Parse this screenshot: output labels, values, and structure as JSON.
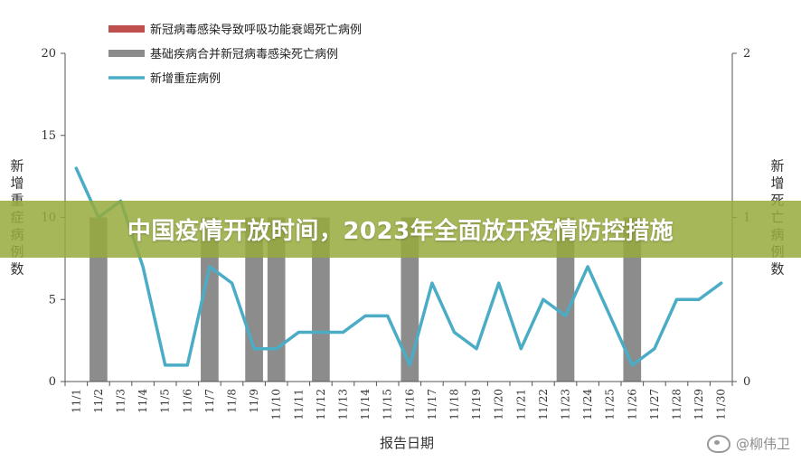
{
  "banner": {
    "title": "中国疫情开放时间，2023年全面放开疫情防控措施"
  },
  "watermark": {
    "text": "@柳伟卫",
    "icon": "weibo-logo-icon"
  },
  "chart_data": {
    "type": "bar+line",
    "xlabel": "报告日期",
    "ylabel_left": "新增重症病例数",
    "ylabel_right": "新增死亡病例数",
    "ylim_left": [
      0,
      20
    ],
    "ylim_right": [
      0,
      2
    ],
    "yticks_left": [
      0,
      5,
      10,
      15,
      20
    ],
    "yticks_right": [
      0,
      1,
      2
    ],
    "grid": false,
    "legend_position": "top-left",
    "categories": [
      "11/1",
      "11/2",
      "11/3",
      "11/4",
      "11/5",
      "11/6",
      "11/7",
      "11/8",
      "11/9",
      "11/10",
      "11/11",
      "11/12",
      "11/13",
      "11/14",
      "11/15",
      "11/16",
      "11/17",
      "11/18",
      "11/19",
      "11/20",
      "11/21",
      "11/22",
      "11/23",
      "11/24",
      "11/25",
      "11/26",
      "11/27",
      "11/28",
      "11/29",
      "11/30"
    ],
    "series": [
      {
        "name": "新冠病毒感染导致呼吸功能衰竭死亡病例",
        "type": "bar",
        "axis": "right",
        "color": "#c0504d",
        "values": [
          0,
          0,
          0,
          0,
          0,
          0,
          0,
          0,
          0,
          0,
          0,
          0,
          0,
          0,
          0,
          0,
          0,
          0,
          0,
          0,
          0,
          0,
          0,
          0,
          0,
          0,
          0,
          0,
          0,
          0
        ]
      },
      {
        "name": "基础疾病合并新冠病毒感染死亡病例",
        "type": "bar",
        "axis": "right",
        "color": "#8c8c8c",
        "values": [
          0,
          1,
          0,
          0,
          0,
          0,
          1,
          0,
          1,
          1,
          0,
          1,
          0,
          0,
          0,
          1,
          0,
          0,
          0,
          0,
          0,
          0,
          1,
          0,
          0,
          1,
          0,
          0,
          0,
          0
        ]
      },
      {
        "name": "新增重症病例",
        "type": "line",
        "axis": "left",
        "color": "#4bacc6",
        "values": [
          13,
          10,
          11,
          7,
          1,
          1,
          7,
          6,
          2,
          2,
          3,
          3,
          3,
          4,
          4,
          1,
          6,
          3,
          2,
          6,
          2,
          5,
          4,
          7,
          4,
          1,
          2,
          5,
          5,
          6
        ]
      }
    ]
  }
}
